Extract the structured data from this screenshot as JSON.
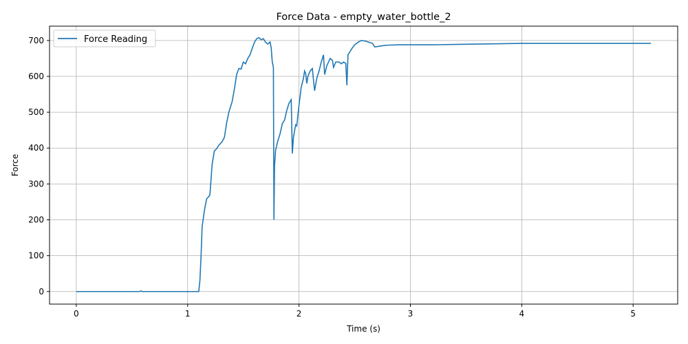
{
  "chart_data": {
    "type": "line",
    "title": "Force Data - empty_water_bottle_2",
    "xlabel": "Time (s)",
    "ylabel": "Force",
    "xlim": [
      -0.24,
      5.4
    ],
    "ylim": [
      -35,
      740
    ],
    "xticks": [
      0,
      1,
      2,
      3,
      4,
      5
    ],
    "yticks": [
      0,
      100,
      200,
      300,
      400,
      500,
      600,
      700
    ],
    "grid": true,
    "legend_position": "upper-left",
    "line_color": "#1f77b4",
    "series": [
      {
        "name": "Force Reading",
        "points": [
          [
            0.0,
            0
          ],
          [
            0.3,
            0
          ],
          [
            0.57,
            0
          ],
          [
            0.58,
            2
          ],
          [
            0.59,
            0
          ],
          [
            0.8,
            0
          ],
          [
            1.0,
            0
          ],
          [
            1.1,
            0
          ],
          [
            1.11,
            30
          ],
          [
            1.12,
            95
          ],
          [
            1.13,
            180
          ],
          [
            1.15,
            225
          ],
          [
            1.17,
            258
          ],
          [
            1.19,
            265
          ],
          [
            1.2,
            270
          ],
          [
            1.22,
            355
          ],
          [
            1.24,
            392
          ],
          [
            1.26,
            398
          ],
          [
            1.28,
            408
          ],
          [
            1.31,
            418
          ],
          [
            1.33,
            430
          ],
          [
            1.35,
            470
          ],
          [
            1.37,
            500
          ],
          [
            1.4,
            530
          ],
          [
            1.42,
            565
          ],
          [
            1.44,
            605
          ],
          [
            1.46,
            622
          ],
          [
            1.48,
            620
          ],
          [
            1.5,
            640
          ],
          [
            1.52,
            635
          ],
          [
            1.54,
            650
          ],
          [
            1.56,
            660
          ],
          [
            1.58,
            678
          ],
          [
            1.6,
            695
          ],
          [
            1.62,
            705
          ],
          [
            1.64,
            708
          ],
          [
            1.66,
            702
          ],
          [
            1.68,
            705
          ],
          [
            1.7,
            695
          ],
          [
            1.72,
            690
          ],
          [
            1.74,
            696
          ],
          [
            1.75,
            680
          ],
          [
            1.76,
            640
          ],
          [
            1.77,
            625
          ],
          [
            1.775,
            200
          ],
          [
            1.78,
            350
          ],
          [
            1.79,
            395
          ],
          [
            1.81,
            420
          ],
          [
            1.83,
            440
          ],
          [
            1.85,
            468
          ],
          [
            1.87,
            478
          ],
          [
            1.89,
            505
          ],
          [
            1.91,
            525
          ],
          [
            1.93,
            535
          ],
          [
            1.94,
            385
          ],
          [
            1.95,
            430
          ],
          [
            1.96,
            448
          ],
          [
            1.97,
            465
          ],
          [
            1.98,
            462
          ],
          [
            2.0,
            520
          ],
          [
            2.02,
            570
          ],
          [
            2.04,
            595
          ],
          [
            2.05,
            615
          ],
          [
            2.06,
            608
          ],
          [
            2.07,
            580
          ],
          [
            2.08,
            600
          ],
          [
            2.1,
            615
          ],
          [
            2.12,
            622
          ],
          [
            2.13,
            590
          ],
          [
            2.14,
            560
          ],
          [
            2.16,
            595
          ],
          [
            2.18,
            615
          ],
          [
            2.2,
            640
          ],
          [
            2.22,
            660
          ],
          [
            2.23,
            605
          ],
          [
            2.25,
            630
          ],
          [
            2.28,
            650
          ],
          [
            2.3,
            645
          ],
          [
            2.31,
            625
          ],
          [
            2.33,
            640
          ],
          [
            2.36,
            640
          ],
          [
            2.38,
            635
          ],
          [
            2.4,
            640
          ],
          [
            2.42,
            636
          ],
          [
            2.43,
            575
          ],
          [
            2.44,
            660
          ],
          [
            2.46,
            670
          ],
          [
            2.48,
            680
          ],
          [
            2.5,
            688
          ],
          [
            2.53,
            695
          ],
          [
            2.56,
            700
          ],
          [
            2.6,
            698
          ],
          [
            2.63,
            695
          ],
          [
            2.66,
            692
          ],
          [
            2.68,
            682
          ],
          [
            2.72,
            684
          ],
          [
            2.76,
            686
          ],
          [
            2.8,
            687
          ],
          [
            2.9,
            688
          ],
          [
            3.0,
            688
          ],
          [
            3.1,
            688
          ],
          [
            3.2,
            688
          ],
          [
            3.4,
            689
          ],
          [
            3.6,
            690
          ],
          [
            3.8,
            691
          ],
          [
            4.0,
            692
          ],
          [
            4.2,
            692
          ],
          [
            4.4,
            692
          ],
          [
            4.6,
            692
          ],
          [
            4.8,
            692
          ],
          [
            5.0,
            692
          ],
          [
            5.16,
            692
          ]
        ]
      }
    ]
  }
}
